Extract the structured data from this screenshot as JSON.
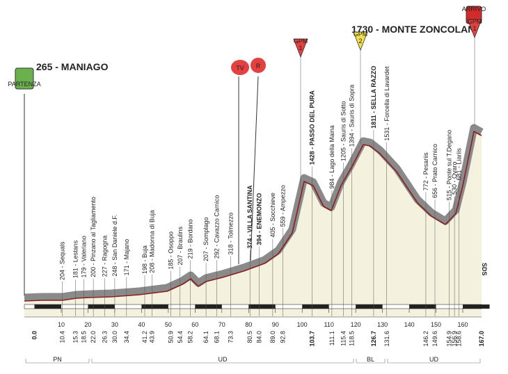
{
  "start": {
    "label": "265 - MANIAGO",
    "badge": "PARTENZA"
  },
  "finish": {
    "label": "1730 - MONTE ZONCOLAN",
    "badge": "ARRIVO"
  },
  "gpm": [
    {
      "text": "GPM",
      "cat": "1"
    },
    {
      "text": "GPM",
      "cat": "2"
    },
    {
      "text": "GPM",
      "cat": "1"
    }
  ],
  "tv": "TV",
  "r": "R",
  "sds": "SDS",
  "places": [
    {
      "label": "204 - Sequals"
    },
    {
      "label": "181 - Lestans"
    },
    {
      "label": "179 - Valeriano"
    },
    {
      "label": "200 - Pinzano al Tagliamento"
    },
    {
      "label": "227 - Ragogna"
    },
    {
      "label": "248 - San Daniele d.F."
    },
    {
      "label": "171 - Majano"
    },
    {
      "label": "198 - Buja"
    },
    {
      "label": "208 - Madonna di Buja"
    },
    {
      "label": "185 - Osoppo"
    },
    {
      "label": "207 - Braulins"
    },
    {
      "label": "219 - Bordano"
    },
    {
      "label": "207 - Somplago"
    },
    {
      "label": "292 - Cavazzo Carnico"
    },
    {
      "label": "318 - Tolmezzo"
    },
    {
      "label": "374 - VILLA SANTINA",
      "bold": true
    },
    {
      "label": "394 - ENEMONZO",
      "bold": true
    },
    {
      "label": "405 - Socchieve"
    },
    {
      "label": "559 - Ampezzo"
    },
    {
      "label": "1428 - PASSO DEL PURA",
      "bold": true
    },
    {
      "label": "984 - Lago della Maina"
    },
    {
      "label": "1205 - Sauris di Sotto"
    },
    {
      "label": "1394 - Sauris di Sopra"
    },
    {
      "label": "1811 - SELLA RAZZO",
      "bold": true
    },
    {
      "label": "1531 - Forcella di Lavardet"
    },
    {
      "label": "772 - Pesariis"
    },
    {
      "label": "656 - Prato Carnico"
    },
    {
      "label": "515 - Ponte sul T.Degano"
    },
    {
      "label": "530 - Ovaro"
    },
    {
      "label": "681 - Liariis"
    }
  ],
  "kms": [
    "0.0",
    "10.4",
    "15.3",
    "18.5",
    "22.0",
    "26.3",
    "30.0",
    "34.4",
    "41.2",
    "43.9",
    "50.9",
    "54.4",
    "58.2",
    "64.1",
    "68.1",
    "73.3",
    "80.5",
    "84.0",
    "89.0",
    "92.8",
    "103.7",
    "111.1",
    "115.4",
    "118.5",
    "126.7",
    "131.6",
    "146.2",
    "149.6",
    "154.9",
    "156.9",
    "158.6",
    "167.0"
  ],
  "scale": [
    10,
    20,
    30,
    40,
    50,
    60,
    70,
    80,
    90,
    100,
    110,
    120,
    130,
    140,
    150,
    160
  ],
  "zones": [
    "PN",
    "UD",
    "BL",
    "UD"
  ]
}
